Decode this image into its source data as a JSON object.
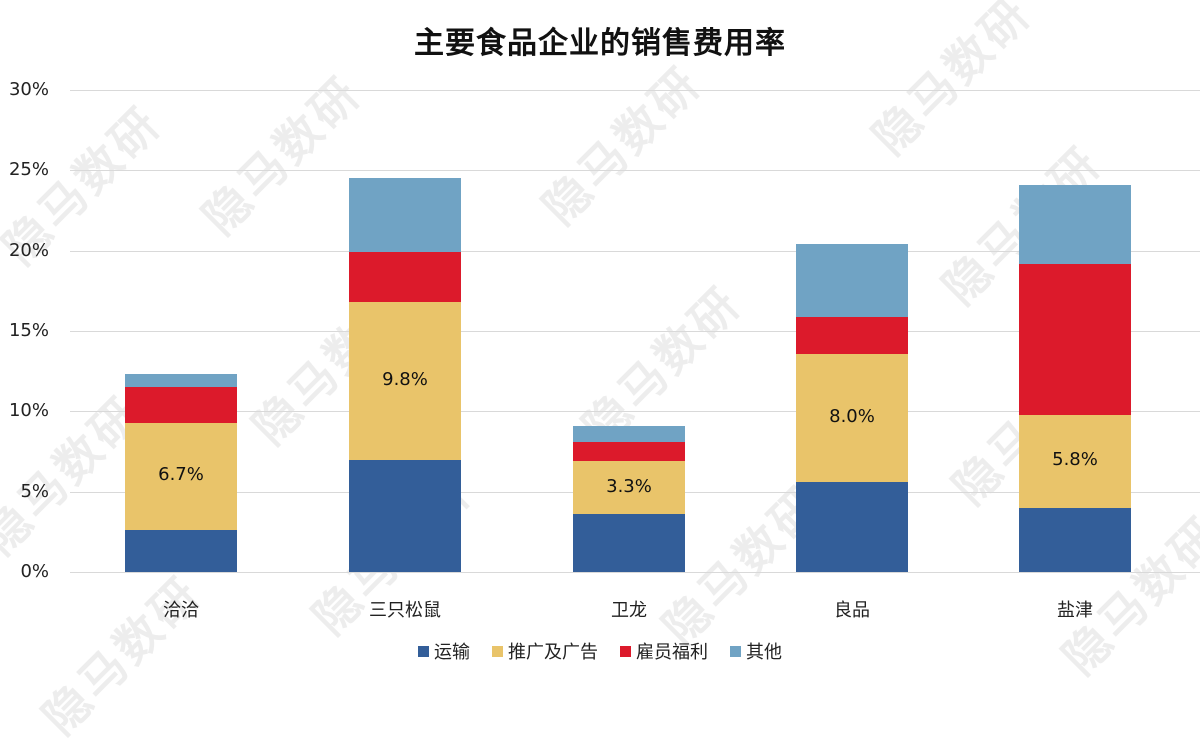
{
  "title": "主要食品企业的销售费用率",
  "watermark": "隐马数研",
  "colors": {
    "运输": "#335e99",
    "推广及广告": "#e9c46a",
    "雇员福利": "#dc1a2b",
    "其他": "#70a3c4"
  },
  "y_ticks": [
    "0%",
    "5%",
    "10%",
    "15%",
    "20%",
    "25%",
    "30%"
  ],
  "legend": [
    {
      "label": "运输",
      "color": "#335e99"
    },
    {
      "label": "推广及广告",
      "color": "#e9c46a"
    },
    {
      "label": "雇员福利",
      "color": "#dc1a2b"
    },
    {
      "label": "其他",
      "color": "#70a3c4"
    }
  ],
  "chart_data": {
    "type": "bar",
    "stacked": true,
    "title": "主要食品企业的销售费用率",
    "xlabel": "",
    "ylabel": "",
    "ylim": [
      0,
      30
    ],
    "y_tick_format": "percent",
    "grid": true,
    "legend_position": "bottom",
    "categories": [
      "洽洽",
      "三只松鼠",
      "卫龙",
      "良品",
      "盐津"
    ],
    "series": [
      {
        "name": "运输",
        "color": "#335e99",
        "values": [
          2.6,
          7.0,
          3.6,
          5.6,
          4.0
        ]
      },
      {
        "name": "推广及广告",
        "color": "#e9c46a",
        "values": [
          6.7,
          9.8,
          3.3,
          8.0,
          5.8
        ],
        "data_labels": [
          "6.7%",
          "9.8%",
          "3.3%",
          "8.0%",
          "5.8%"
        ]
      },
      {
        "name": "雇员福利",
        "color": "#dc1a2b",
        "values": [
          2.2,
          3.1,
          1.2,
          2.3,
          9.4
        ]
      },
      {
        "name": "其他",
        "color": "#70a3c4",
        "values": [
          0.8,
          4.6,
          1.0,
          4.5,
          4.9
        ]
      }
    ],
    "totals": [
      12.3,
      24.5,
      9.1,
      20.4,
      24.1
    ]
  }
}
